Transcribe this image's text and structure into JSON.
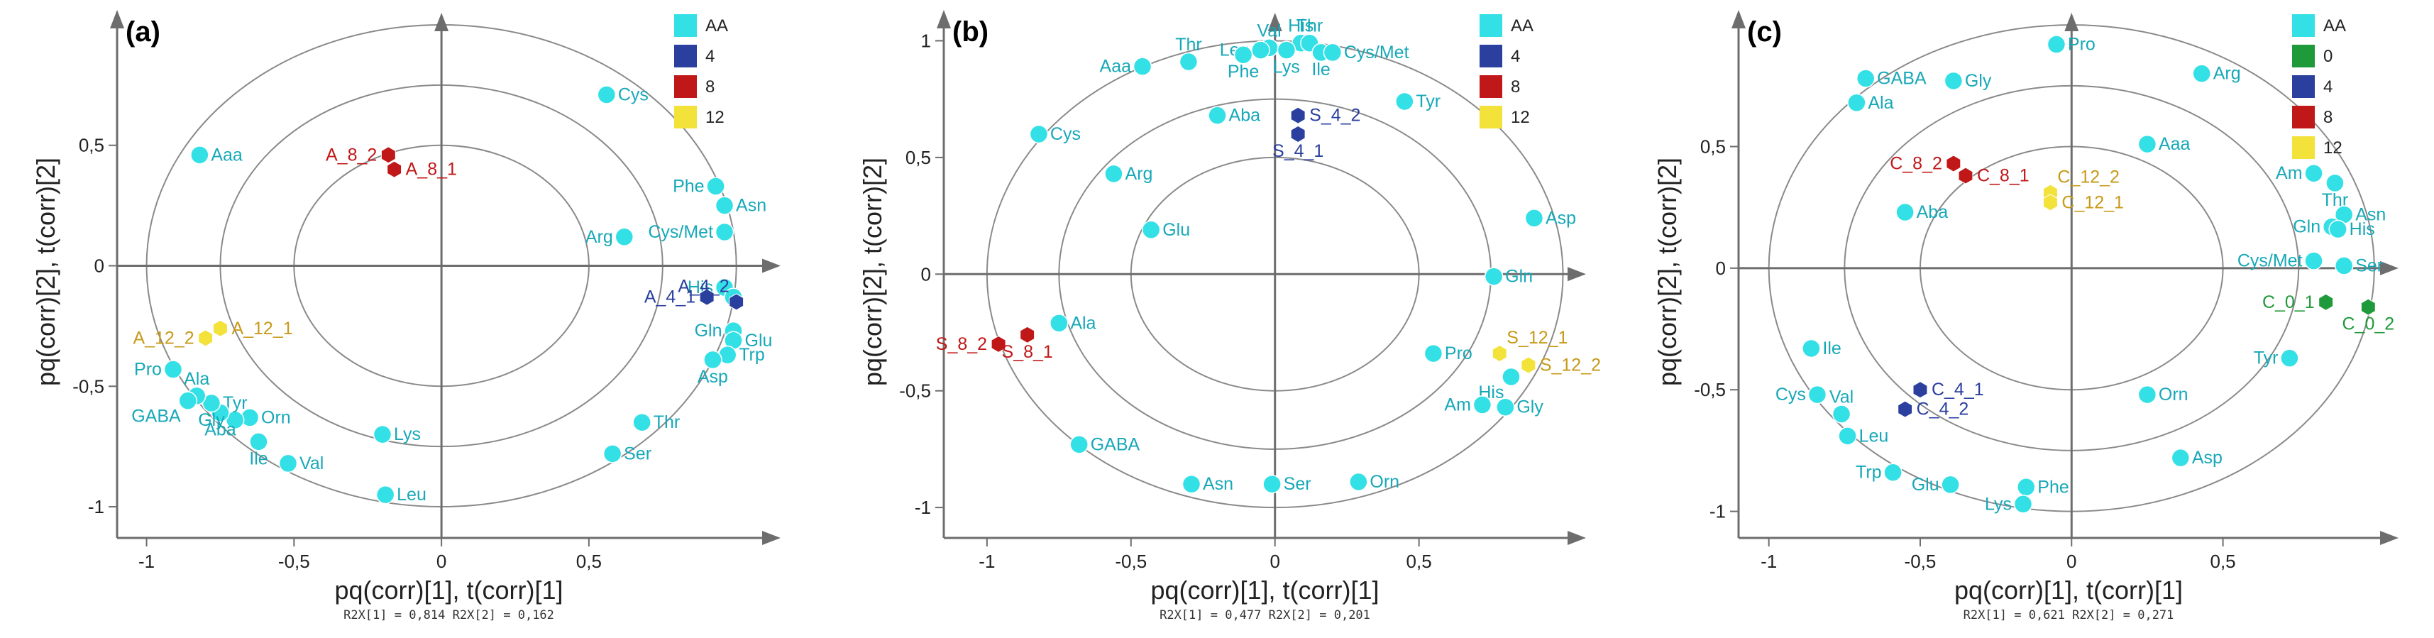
{
  "colors": {
    "AA": "#33e0e6",
    "AA_text": "#17a8b8",
    "4": "#2a3f9e",
    "0": "#1f9a3a",
    "8": "#c01818",
    "12": "#f2e23a",
    "12_text": "#c79a1a"
  },
  "chart_data": [
    {
      "type": "scatter",
      "panel_label": "(a)",
      "xlabel": "pq(corr)[1], t(corr)[1]",
      "ylabel": "pq(corr)[2], t(corr)[2]",
      "r2x": "R2X[1] = 0,814 R2X[2] = 0,162",
      "xlim": [
        -1.1,
        1.15
      ],
      "ylim": [
        -1.1,
        1.05
      ],
      "xticks": [
        -1,
        -0.5,
        0.5
      ],
      "xtick_labels": [
        "-1",
        "-0,5",
        "0,5"
      ],
      "yticks": [
        -1,
        -0.5,
        0.5
      ],
      "ytick_labels": [
        "-1",
        "-0,5",
        "0,5"
      ],
      "zero_label_x": 0,
      "legend": [
        {
          "name": "AA",
          "color": "#33e0e6"
        },
        {
          "name": "4",
          "color": "#2a3f9e"
        },
        {
          "name": "8",
          "color": "#c01818"
        },
        {
          "name": "12",
          "color": "#f2e23a"
        }
      ],
      "series": [
        {
          "name": "AA",
          "marker": "circle",
          "points": [
            {
              "label": "Cys",
              "x": 0.56,
              "y": 0.71,
              "pos": "r"
            },
            {
              "label": "Aaa",
              "x": -0.82,
              "y": 0.46,
              "pos": "r"
            },
            {
              "label": "Phe",
              "x": 0.93,
              "y": 0.33,
              "pos": "l"
            },
            {
              "label": "Asn",
              "x": 0.96,
              "y": 0.25,
              "pos": "r"
            },
            {
              "label": "Cys/Met",
              "x": 0.96,
              "y": 0.14,
              "pos": "l"
            },
            {
              "label": "Arg",
              "x": 0.62,
              "y": 0.12,
              "pos": "l"
            },
            {
              "label": "His",
              "x": 0.96,
              "y": -0.09,
              "pos": "l"
            },
            {
              "label": "Ala2",
              "x": 0.99,
              "y": -0.13,
              "pos": "r",
              "hide": true
            },
            {
              "label": "Gln",
              "x": 0.99,
              "y": -0.27,
              "pos": "l"
            },
            {
              "label": "Glu",
              "x": 0.99,
              "y": -0.31,
              "pos": "r"
            },
            {
              "label": "Trp",
              "x": 0.97,
              "y": -0.37,
              "pos": "r"
            },
            {
              "label": "Asp",
              "x": 0.92,
              "y": -0.39,
              "pos": "b"
            },
            {
              "label": "Thr",
              "x": 0.68,
              "y": -0.65,
              "pos": "r"
            },
            {
              "label": "Ser",
              "x": 0.58,
              "y": -0.78,
              "pos": "r"
            },
            {
              "label": "Lys",
              "x": -0.2,
              "y": -0.7,
              "pos": "r"
            },
            {
              "label": "Leu",
              "x": -0.19,
              "y": -0.95,
              "pos": "r"
            },
            {
              "label": "Val",
              "x": -0.52,
              "y": -0.82,
              "pos": "r"
            },
            {
              "label": "Ile",
              "x": -0.62,
              "y": -0.73,
              "pos": "b"
            },
            {
              "label": "Orn",
              "x": -0.65,
              "y": -0.63,
              "pos": "r"
            },
            {
              "label": "Tyr",
              "x": -0.7,
              "y": -0.64,
              "pos": "t"
            },
            {
              "label": "Aba",
              "x": -0.75,
              "y": -0.61,
              "pos": "b"
            },
            {
              "label": "Gly",
              "x": -0.78,
              "y": -0.57,
              "pos": "b"
            },
            {
              "label": "Ala",
              "x": -0.83,
              "y": -0.54,
              "pos": "t"
            },
            {
              "label": "GABA",
              "x": -0.86,
              "y": -0.56,
              "pos": "bl"
            },
            {
              "label": "Pro",
              "x": -0.91,
              "y": -0.43,
              "pos": "l"
            }
          ]
        },
        {
          "name": "4",
          "marker": "hex",
          "points": [
            {
              "label": "A_4_1",
              "x": 0.9,
              "y": -0.13,
              "pos": "l"
            },
            {
              "label": "A_4_2",
              "x": 1.0,
              "y": -0.15,
              "pos": "tl"
            }
          ]
        },
        {
          "name": "8",
          "marker": "hex",
          "points": [
            {
              "label": "A_8_2",
              "x": -0.18,
              "y": 0.46,
              "pos": "l"
            },
            {
              "label": "A_8_1",
              "x": -0.16,
              "y": 0.4,
              "pos": "r"
            }
          ]
        },
        {
          "name": "12",
          "marker": "hex",
          "points": [
            {
              "label": "A_12_2",
              "x": -0.8,
              "y": -0.3,
              "pos": "l"
            },
            {
              "label": "A_12_1",
              "x": -0.75,
              "y": -0.26,
              "pos": "r"
            }
          ]
        }
      ]
    },
    {
      "type": "scatter",
      "panel_label": "(b)",
      "xlabel": "pq(corr)[1], t(corr)[1]",
      "ylabel": "pq(corr)[2], t(corr)[2]",
      "r2x": "R2X[1] = 0,477 R2X[2] = 0,201",
      "xlim": [
        -1.15,
        1.08
      ],
      "ylim": [
        -1.1,
        1.12
      ],
      "xticks": [
        -1,
        -0.5,
        0.5
      ],
      "xtick_labels": [
        "-1",
        "-0,5",
        "0,5"
      ],
      "yticks": [
        -1,
        -0.5,
        0.5,
        1
      ],
      "ytick_labels": [
        "-1",
        "-0,5",
        "0,5",
        "1"
      ],
      "zero_label_x": 0,
      "legend": [
        {
          "name": "AA",
          "color": "#33e0e6"
        },
        {
          "name": "4",
          "color": "#2a3f9e"
        },
        {
          "name": "8",
          "color": "#c01818"
        },
        {
          "name": "12",
          "color": "#f2e23a"
        }
      ],
      "series": [
        {
          "name": "AA",
          "marker": "circle",
          "points": [
            {
              "label": "Val",
              "x": -0.02,
              "y": 0.97,
              "pos": "t"
            },
            {
              "label": "His",
              "x": 0.09,
              "y": 0.99,
              "pos": "t"
            },
            {
              "label": "Thr",
              "x": 0.12,
              "y": 0.99,
              "pos": "t"
            },
            {
              "label": "Leu",
              "x": -0.05,
              "y": 0.96,
              "pos": "l"
            },
            {
              "label": "Phe",
              "x": -0.11,
              "y": 0.94,
              "pos": "b"
            },
            {
              "label": "Lys",
              "x": 0.04,
              "y": 0.96,
              "pos": "b"
            },
            {
              "label": "Ile",
              "x": 0.16,
              "y": 0.95,
              "pos": "b"
            },
            {
              "label": "Cys/Met",
              "x": 0.2,
              "y": 0.95,
              "pos": "r"
            },
            {
              "label": "Thr",
              "x": -0.3,
              "y": 0.91,
              "pos": "t"
            },
            {
              "label": "Aaa",
              "x": -0.46,
              "y": 0.89,
              "pos": "l"
            },
            {
              "label": "Tyr",
              "x": 0.45,
              "y": 0.74,
              "pos": "r"
            },
            {
              "label": "Aba",
              "x": -0.2,
              "y": 0.68,
              "pos": "r"
            },
            {
              "label": "Cys",
              "x": -0.82,
              "y": 0.6,
              "pos": "r"
            },
            {
              "label": "Arg",
              "x": -0.56,
              "y": 0.43,
              "pos": "r"
            },
            {
              "label": "Asp",
              "x": 0.9,
              "y": 0.24,
              "pos": "r"
            },
            {
              "label": "Glu",
              "x": -0.43,
              "y": 0.19,
              "pos": "r"
            },
            {
              "label": "Gln",
              "x": 0.76,
              "y": -0.01,
              "pos": "r"
            },
            {
              "label": "Ala",
              "x": -0.75,
              "y": -0.21,
              "pos": "r"
            },
            {
              "label": "Pro",
              "x": 0.55,
              "y": -0.34,
              "pos": "r"
            },
            {
              "label": "His",
              "x": 0.82,
              "y": -0.44,
              "pos": "bl"
            },
            {
              "label": "Am",
              "x": 0.72,
              "y": -0.56,
              "pos": "l"
            },
            {
              "label": "Gly",
              "x": 0.8,
              "y": -0.57,
              "pos": "r"
            },
            {
              "label": "GABA",
              "x": -0.68,
              "y": -0.73,
              "pos": "r"
            },
            {
              "label": "Asn",
              "x": -0.29,
              "y": -0.9,
              "pos": "r"
            },
            {
              "label": "Ser",
              "x": -0.01,
              "y": -0.9,
              "pos": "r"
            },
            {
              "label": "Orn",
              "x": 0.29,
              "y": -0.89,
              "pos": "r"
            }
          ]
        },
        {
          "name": "4",
          "marker": "hex",
          "points": [
            {
              "label": "S_4_2",
              "x": 0.08,
              "y": 0.68,
              "pos": "r"
            },
            {
              "label": "S_4_1",
              "x": 0.08,
              "y": 0.6,
              "pos": "b"
            }
          ]
        },
        {
          "name": "8",
          "marker": "hex",
          "points": [
            {
              "label": "S_8_2",
              "x": -0.96,
              "y": -0.3,
              "pos": "l"
            },
            {
              "label": "S_8_1",
              "x": -0.86,
              "y": -0.26,
              "pos": "b"
            }
          ]
        },
        {
          "name": "12",
          "marker": "hex",
          "points": [
            {
              "label": "S_12_1",
              "x": 0.78,
              "y": -0.34,
              "pos": "tr"
            },
            {
              "label": "S_12_2",
              "x": 0.88,
              "y": -0.39,
              "pos": "r"
            }
          ]
        }
      ]
    },
    {
      "type": "scatter",
      "panel_label": "(c)",
      "xlabel": "pq(corr)[1], t(corr)[1]",
      "ylabel": "pq(corr)[2], t(corr)[2]",
      "r2x": "R2X[1] = 0,621 R2X[2] = 0,271",
      "xlim": [
        -1.1,
        1.08
      ],
      "ylim": [
        -1.08,
        1.05
      ],
      "xticks": [
        -1,
        -0.5,
        0.5
      ],
      "xtick_labels": [
        "-1",
        "-0,5",
        "0,5"
      ],
      "yticks": [
        -1,
        -0.5,
        0.5
      ],
      "ytick_labels": [
        "-1",
        "-0,5",
        "0,5"
      ],
      "zero_label_x": 0,
      "legend": [
        {
          "name": "AA",
          "color": "#33e0e6"
        },
        {
          "name": "0",
          "color": "#1f9a3a"
        },
        {
          "name": "4",
          "color": "#2a3f9e"
        },
        {
          "name": "8",
          "color": "#c01818"
        },
        {
          "name": "12",
          "color": "#f2e23a"
        }
      ],
      "series": [
        {
          "name": "AA",
          "marker": "circle",
          "points": [
            {
              "label": "Pro",
              "x": -0.05,
              "y": 0.92,
              "pos": "r"
            },
            {
              "label": "Arg",
              "x": 0.43,
              "y": 0.8,
              "pos": "r"
            },
            {
              "label": "GABA",
              "x": -0.68,
              "y": 0.78,
              "pos": "r"
            },
            {
              "label": "Gly",
              "x": -0.39,
              "y": 0.77,
              "pos": "r"
            },
            {
              "label": "Ala",
              "x": -0.71,
              "y": 0.68,
              "pos": "r"
            },
            {
              "label": "Aaa",
              "x": 0.25,
              "y": 0.51,
              "pos": "r"
            },
            {
              "label": "Am",
              "x": 0.8,
              "y": 0.39,
              "pos": "l"
            },
            {
              "label": "Thr",
              "x": 0.87,
              "y": 0.35,
              "pos": "b"
            },
            {
              "label": "Asn",
              "x": 0.9,
              "y": 0.22,
              "pos": "r"
            },
            {
              "label": "Aba",
              "x": -0.55,
              "y": 0.23,
              "pos": "r"
            },
            {
              "label": "Gln",
              "x": 0.86,
              "y": 0.17,
              "pos": "l"
            },
            {
              "label": "His",
              "x": 0.88,
              "y": 0.16,
              "pos": "r"
            },
            {
              "label": "Cys/Met",
              "x": 0.8,
              "y": 0.03,
              "pos": "l"
            },
            {
              "label": "Ser",
              "x": 0.9,
              "y": 0.01,
              "pos": "r"
            },
            {
              "label": "Ile",
              "x": -0.86,
              "y": -0.33,
              "pos": "r"
            },
            {
              "label": "Tyr",
              "x": 0.72,
              "y": -0.37,
              "pos": "l"
            },
            {
              "label": "Cys",
              "x": -0.84,
              "y": -0.52,
              "pos": "l"
            },
            {
              "label": "Val",
              "x": -0.76,
              "y": -0.6,
              "pos": "t"
            },
            {
              "label": "Orn",
              "x": 0.25,
              "y": -0.52,
              "pos": "r"
            },
            {
              "label": "Leu",
              "x": -0.74,
              "y": -0.69,
              "pos": "r"
            },
            {
              "label": "Asp",
              "x": 0.36,
              "y": -0.78,
              "pos": "r"
            },
            {
              "label": "Trp",
              "x": -0.59,
              "y": -0.84,
              "pos": "l"
            },
            {
              "label": "Glu",
              "x": -0.4,
              "y": -0.89,
              "pos": "l"
            },
            {
              "label": "Phe",
              "x": -0.15,
              "y": -0.9,
              "pos": "r"
            },
            {
              "label": "Lys",
              "x": -0.16,
              "y": -0.97,
              "pos": "l"
            }
          ]
        },
        {
          "name": "0",
          "marker": "hex",
          "points": [
            {
              "label": "C_0_1",
              "x": 0.84,
              "y": -0.14,
              "pos": "l"
            },
            {
              "label": "C_0_2",
              "x": 0.98,
              "y": -0.16,
              "pos": "b"
            }
          ]
        },
        {
          "name": "4",
          "marker": "hex",
          "points": [
            {
              "label": "C_4_1",
              "x": -0.5,
              "y": -0.5,
              "pos": "r"
            },
            {
              "label": "C_4_2",
              "x": -0.55,
              "y": -0.58,
              "pos": "r"
            }
          ]
        },
        {
          "name": "8",
          "marker": "hex",
          "points": [
            {
              "label": "C_8_2",
              "x": -0.39,
              "y": 0.43,
              "pos": "l"
            },
            {
              "label": "C_8_1",
              "x": -0.35,
              "y": 0.38,
              "pos": "r"
            }
          ]
        },
        {
          "name": "12",
          "marker": "hex",
          "points": [
            {
              "label": "C_12_2",
              "x": -0.07,
              "y": 0.31,
              "pos": "tr"
            },
            {
              "label": "C_12_1",
              "x": -0.07,
              "y": 0.27,
              "pos": "r"
            }
          ]
        }
      ]
    }
  ]
}
